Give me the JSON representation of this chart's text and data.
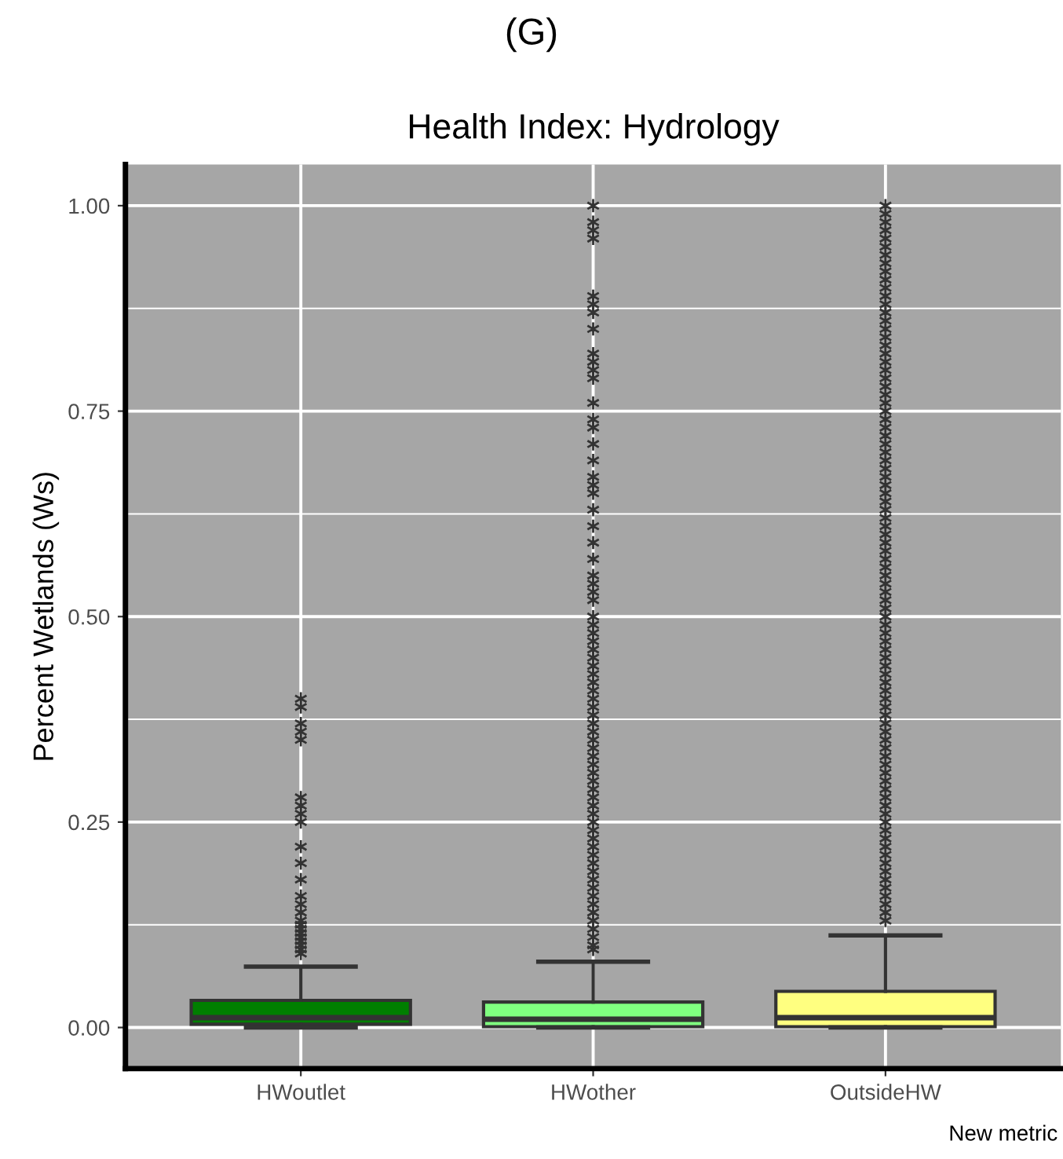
{
  "chart_data": {
    "type": "box",
    "title": "Health Index: Hydrology",
    "ylabel": "Percent Wetlands (Ws)",
    "annotations": [
      "(G)",
      "New metric"
    ],
    "categories": [
      "HWoutlet",
      "HWother",
      "OutsideHW"
    ],
    "colors": [
      "#007f00",
      "#80ff80",
      "#ffff80"
    ],
    "boxes": [
      {
        "low": 0.0,
        "q1": 0.004,
        "median": 0.012,
        "q3": 0.033,
        "high": 0.074,
        "outliers": [
          0.09,
          0.095,
          0.1,
          0.105,
          0.11,
          0.115,
          0.12,
          0.125,
          0.13,
          0.14,
          0.15,
          0.16,
          0.18,
          0.2,
          0.22,
          0.25,
          0.26,
          0.27,
          0.28,
          0.35,
          0.36,
          0.37,
          0.39,
          0.4
        ]
      },
      {
        "low": 0.0,
        "q1": 0.001,
        "median": 0.01,
        "q3": 0.031,
        "high": 0.08,
        "outliers": [
          0.095,
          0.1,
          0.11,
          0.12,
          0.13,
          0.14,
          0.15,
          0.16,
          0.17,
          0.18,
          0.19,
          0.2,
          0.21,
          0.22,
          0.23,
          0.24,
          0.25,
          0.26,
          0.27,
          0.28,
          0.29,
          0.3,
          0.31,
          0.32,
          0.33,
          0.34,
          0.35,
          0.36,
          0.37,
          0.38,
          0.39,
          0.4,
          0.41,
          0.42,
          0.43,
          0.44,
          0.45,
          0.46,
          0.47,
          0.48,
          0.49,
          0.5,
          0.52,
          0.53,
          0.54,
          0.55,
          0.57,
          0.59,
          0.61,
          0.63,
          0.65,
          0.66,
          0.67,
          0.69,
          0.71,
          0.73,
          0.74,
          0.76,
          0.79,
          0.8,
          0.81,
          0.82,
          0.85,
          0.87,
          0.88,
          0.89,
          0.96,
          0.97,
          0.98,
          1.0
        ]
      },
      {
        "low": 0.0,
        "q1": 0.001,
        "median": 0.012,
        "q3": 0.044,
        "high": 0.112,
        "outliers": [
          0.13,
          0.14,
          0.15,
          0.16,
          0.17,
          0.18,
          0.19,
          0.2,
          0.21,
          0.22,
          0.23,
          0.24,
          0.25,
          0.26,
          0.27,
          0.28,
          0.29,
          0.3,
          0.31,
          0.32,
          0.33,
          0.34,
          0.35,
          0.36,
          0.37,
          0.38,
          0.39,
          0.4,
          0.41,
          0.42,
          0.43,
          0.44,
          0.45,
          0.46,
          0.47,
          0.48,
          0.49,
          0.5,
          0.51,
          0.52,
          0.53,
          0.54,
          0.55,
          0.56,
          0.57,
          0.58,
          0.59,
          0.6,
          0.61,
          0.62,
          0.63,
          0.64,
          0.65,
          0.66,
          0.67,
          0.68,
          0.69,
          0.7,
          0.71,
          0.72,
          0.73,
          0.74,
          0.75,
          0.76,
          0.77,
          0.78,
          0.79,
          0.8,
          0.81,
          0.82,
          0.83,
          0.84,
          0.85,
          0.86,
          0.87,
          0.88,
          0.89,
          0.9,
          0.91,
          0.92,
          0.93,
          0.94,
          0.95,
          0.96,
          0.97,
          0.98,
          0.99,
          1.0
        ]
      }
    ],
    "ylim": [
      -0.05,
      1.05
    ],
    "yticks": [
      {
        "value": 0,
        "label": "0.00"
      },
      {
        "value": 0.25,
        "label": "0.25"
      },
      {
        "value": 0.5,
        "label": "0.50"
      },
      {
        "value": 0.75,
        "label": "0.75"
      },
      {
        "value": 1,
        "label": "1.00"
      }
    ],
    "grid": true,
    "marker": "star"
  }
}
